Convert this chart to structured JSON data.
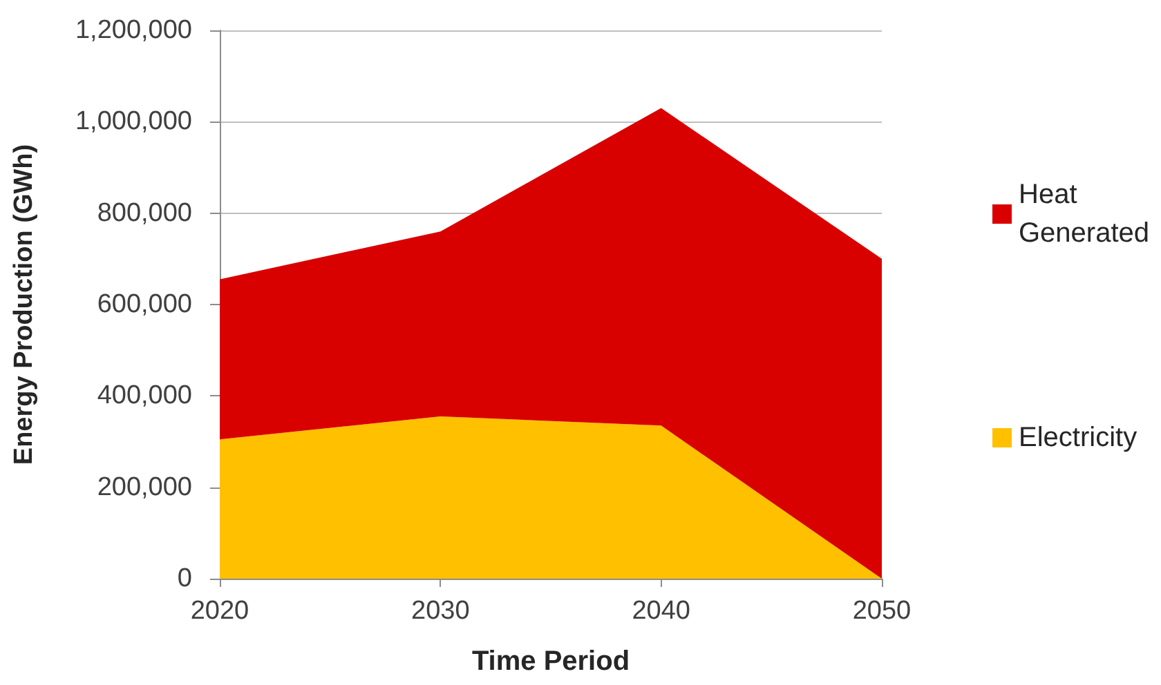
{
  "chart_data": {
    "type": "area",
    "xlabel": "Time Period",
    "ylabel": "Energy Production (GWh)",
    "categories": [
      "2020",
      "2030",
      "2040",
      "2050"
    ],
    "series": [
      {
        "name": "Electricity",
        "color": "#ffc000",
        "values": [
          305000,
          355000,
          335000,
          0
        ]
      },
      {
        "name": "Heat Generated",
        "color": "#d90000",
        "values": [
          350000,
          405000,
          695000,
          700000
        ]
      }
    ],
    "stacked": true,
    "ylim": [
      0,
      1200000
    ],
    "yticks": [
      {
        "value": 0,
        "label": "0"
      },
      {
        "value": 200000,
        "label": "200,000"
      },
      {
        "value": 400000,
        "label": "400,000"
      },
      {
        "value": 600000,
        "label": "600,000"
      },
      {
        "value": 800000,
        "label": "800,000"
      },
      {
        "value": 1000000,
        "label": "1,000,000"
      },
      {
        "value": 1200000,
        "label": "1,200,000"
      }
    ],
    "grid": "y",
    "legend": "right",
    "marker": "none"
  }
}
